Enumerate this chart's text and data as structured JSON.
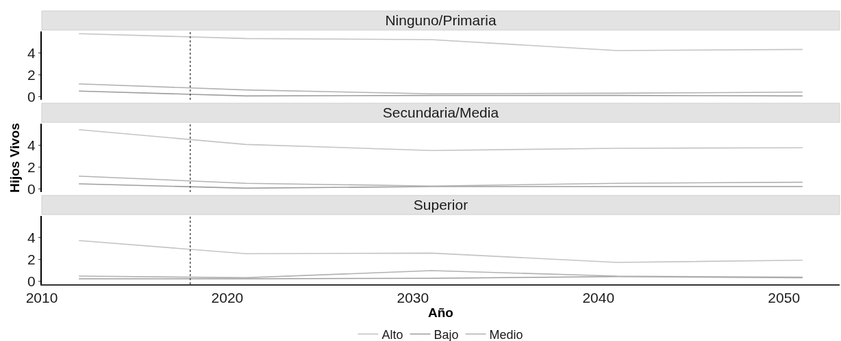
{
  "chart_data": [
    {
      "type": "line",
      "title": "Ninguno/Primaria",
      "x": [
        2012,
        2021,
        2031,
        2041,
        2051
      ],
      "series": [
        {
          "color": "#c4c4c4",
          "values": [
            5.75,
            5.3,
            5.2,
            4.2,
            4.3
          ]
        },
        {
          "color": "#9e9e9e",
          "values": [
            0.5,
            0.05,
            0.1,
            0.1,
            0.05
          ]
        },
        {
          "color": "#b2b2b2",
          "values": [
            1.15,
            0.6,
            0.25,
            0.3,
            0.4
          ]
        }
      ],
      "xlim": [
        2010,
        2053
      ],
      "xticks": [
        2010,
        2020,
        2030,
        2040,
        2050
      ],
      "ylim": [
        -0.3,
        5.95
      ],
      "yticks": [
        0,
        2,
        4
      ],
      "tick_labels": "y",
      "ref_lines": [
        {
          "axis": "x",
          "value": 2018,
          "line_style": "dotted",
          "color": "#555555"
        }
      ]
    },
    {
      "type": "line",
      "title": "Secundaria/Media",
      "ylabel": "Hijos Vivos",
      "x": [
        2012,
        2021,
        2031,
        2041,
        2051
      ],
      "series": [
        {
          "color": "#c4c4c4",
          "values": [
            5.4,
            4.05,
            3.5,
            3.7,
            3.75
          ]
        },
        {
          "color": "#9e9e9e",
          "values": [
            0.45,
            0.05,
            0.2,
            0.2,
            0.2
          ]
        },
        {
          "color": "#b2b2b2",
          "values": [
            1.15,
            0.5,
            0.25,
            0.5,
            0.6
          ]
        }
      ],
      "xlim": [
        2010,
        2053
      ],
      "xticks": [
        2010,
        2020,
        2030,
        2040,
        2050
      ],
      "ylim": [
        -0.3,
        5.95
      ],
      "yticks": [
        0,
        2,
        4
      ],
      "tick_labels": "y",
      "ref_lines": [
        {
          "axis": "x",
          "value": 2018,
          "line_style": "dotted",
          "color": "#555555"
        }
      ]
    },
    {
      "type": "line",
      "title": "Superior",
      "xlabel": "Año",
      "x": [
        2012,
        2021,
        2031,
        2041,
        2051
      ],
      "series": [
        {
          "name": "Alto",
          "color": "#c4c4c4",
          "values": [
            3.7,
            2.5,
            2.55,
            1.7,
            1.9
          ]
        },
        {
          "name": "Bajo",
          "color": "#9e9e9e",
          "values": [
            0.2,
            0.2,
            0.25,
            0.4,
            0.3
          ]
        },
        {
          "name": "Medio",
          "color": "#b2b2b2",
          "values": [
            0.45,
            0.3,
            0.95,
            0.45,
            0.35
          ]
        }
      ],
      "xlim": [
        2010,
        2053
      ],
      "xticks": [
        2010,
        2020,
        2030,
        2040,
        2050
      ],
      "ylim": [
        -0.3,
        5.95
      ],
      "yticks": [
        0,
        2,
        4
      ],
      "ref_lines": [
        {
          "axis": "x",
          "value": 2018,
          "line_style": "dotted",
          "color": "#555555"
        }
      ],
      "legend": "bottom"
    }
  ]
}
